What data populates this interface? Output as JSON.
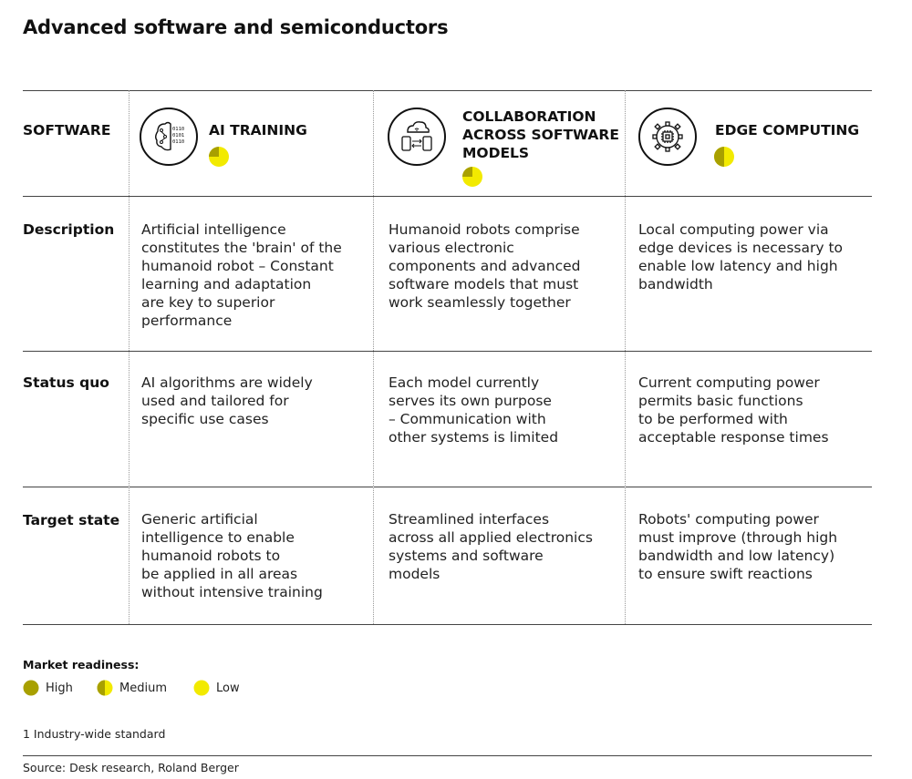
{
  "title": "Advanced software and semiconductors",
  "header": {
    "row_label": "SOFTWARE",
    "columns": [
      {
        "label": "AI TRAINING",
        "icon": "ai-brain-icon",
        "readiness": "Low"
      },
      {
        "label": "COLLABORATION\nACROSS SOFTWARE\nMODELS",
        "icon": "cloud-devices-icon",
        "readiness": "Low"
      },
      {
        "label": "EDGE COMPUTING",
        "icon": "chip-gear-icon",
        "readiness": "Medium"
      }
    ]
  },
  "rows": [
    {
      "label": "Description",
      "cells": [
        "Artificial intelligence\nconstitutes the 'brain' of the\nhumanoid robot – Constant\nlearning and adaptation\nare key to superior\nperformance",
        "Humanoid robots comprise\nvarious electronic\ncomponents and advanced\nsoftware models that must\nwork seamlessly together",
        "Local computing power via\nedge devices is necessary to\nenable low latency and high\nbandwidth"
      ]
    },
    {
      "label": "Status quo",
      "cells": [
        "AI algorithms are widely\nused and tailored for\nspecific use cases",
        "Each model currently\nserves its own purpose\n– Communication with\nother systems is limited",
        "Current computing power\npermits basic functions\nto be performed with\nacceptable response times"
      ]
    },
    {
      "label": "Target state",
      "cells": [
        "Generic artificial\nintelligence to enable\nhumanoid robots to\nbe applied in all areas\nwithout intensive training",
        "Streamlined interfaces\nacross all applied electronics\nsystems and software\nmodels",
        "Robots' computing power\nmust improve (through high\nbandwidth and low latency)\nto ensure swift reactions"
      ]
    }
  ],
  "legend": {
    "title": "Market readiness:",
    "items": [
      {
        "label": "High"
      },
      {
        "label": "Medium"
      },
      {
        "label": "Low"
      }
    ]
  },
  "footnote": "1 Industry-wide standard",
  "source": "Source: Desk research, Roland Berger",
  "colors": {
    "high": "#a8a000",
    "low": "#f2ea00",
    "rule": "#444444"
  }
}
